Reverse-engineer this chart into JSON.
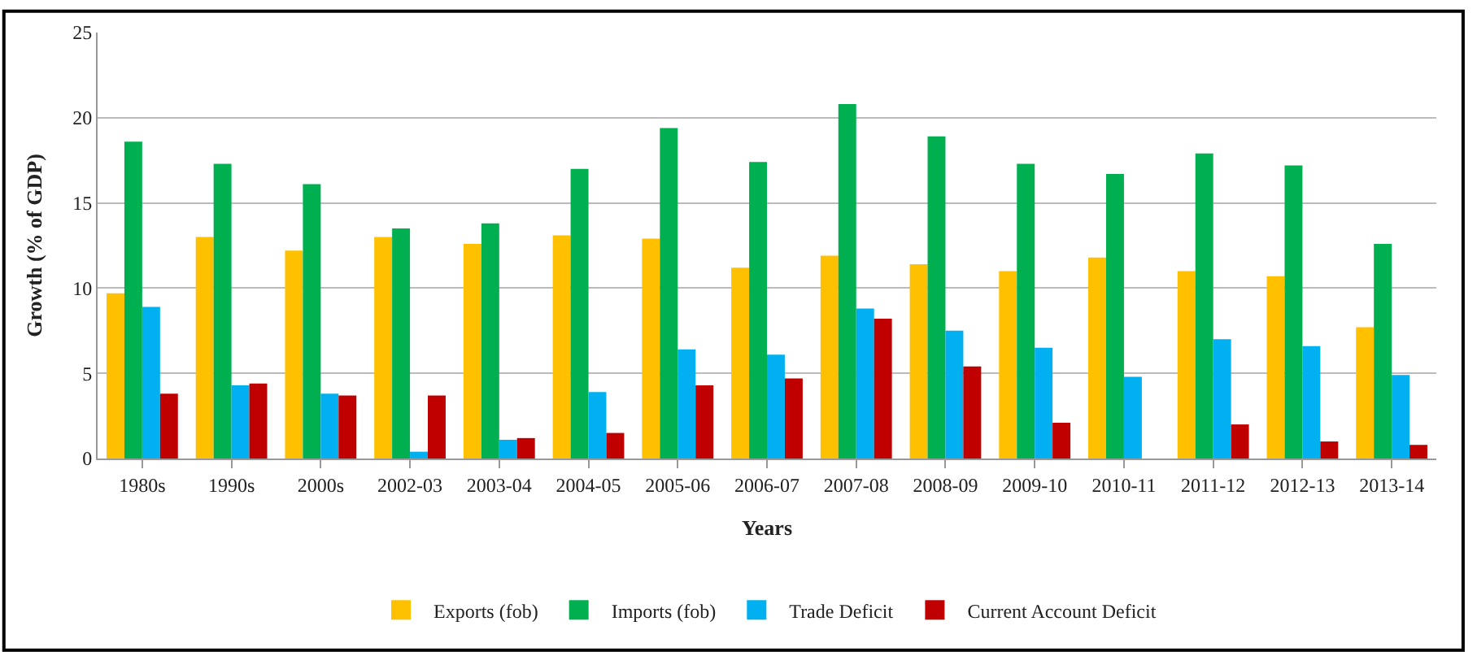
{
  "chart_data": {
    "type": "bar",
    "xlabel": "Years",
    "ylabel": "Growth (% of GDP)",
    "categories": [
      "1980s",
      "1990s",
      "2000s",
      "2002-03",
      "2003-04",
      "2004-05",
      "2005-06",
      "2006-07",
      "2007-08",
      "2008-09",
      "2009-10",
      "2010-11",
      "2011-12",
      "2012-13",
      "2013-14"
    ],
    "series": [
      {
        "name": "Exports (fob)",
        "color": "#ffc000",
        "values": [
          9.7,
          13.0,
          12.2,
          13.0,
          12.6,
          13.1,
          12.9,
          11.2,
          11.9,
          11.4,
          11.0,
          11.8,
          11.0,
          10.7,
          7.7
        ]
      },
      {
        "name": "Imports (fob)",
        "color": "#00b050",
        "values": [
          18.6,
          17.3,
          16.1,
          13.5,
          13.8,
          17.0,
          19.4,
          17.4,
          20.8,
          18.9,
          17.3,
          16.7,
          17.9,
          17.2,
          12.6
        ]
      },
      {
        "name": "Trade Deficit",
        "color": "#00b0f0",
        "values": [
          8.9,
          4.3,
          3.8,
          0.4,
          1.1,
          3.9,
          6.4,
          6.1,
          8.8,
          7.5,
          6.5,
          4.8,
          7.0,
          6.6,
          4.9
        ]
      },
      {
        "name": "Current Account Deficit",
        "color": "#c00000",
        "values": [
          3.8,
          4.4,
          3.7,
          3.7,
          1.2,
          1.5,
          4.3,
          4.7,
          8.2,
          5.4,
          2.1,
          null,
          2.0,
          1.0,
          0.8
        ]
      }
    ],
    "ylim": [
      0,
      25
    ],
    "yticks": [
      0,
      5,
      10,
      15,
      20,
      25
    ],
    "grid": "y",
    "legend": "bottom"
  }
}
